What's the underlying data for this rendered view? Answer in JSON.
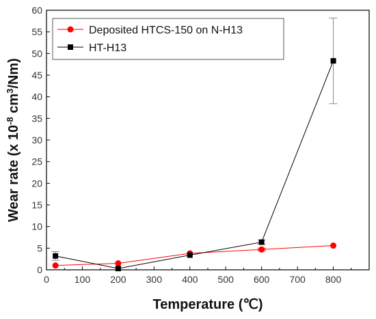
{
  "chart_data": {
    "type": "line",
    "title": "",
    "xlabel": "Temperature (℃)",
    "ylabel_parts": [
      "Wear rate (x 10",
      "-8",
      " cm",
      "3",
      "/Nm)"
    ],
    "xlim": [
      0,
      900
    ],
    "ylim": [
      0,
      60
    ],
    "xticks": [
      0,
      100,
      200,
      300,
      400,
      500,
      600,
      700,
      800
    ],
    "yticks": [
      0,
      5,
      10,
      15,
      20,
      25,
      30,
      35,
      40,
      45,
      50,
      55,
      60
    ],
    "grid": false,
    "legend_position": "top-left",
    "series": [
      {
        "name": "Deposited HTCS-150 on N-H13",
        "color": "#ff0000",
        "marker": "circle",
        "x": [
          25,
          200,
          400,
          600,
          800
        ],
        "y": [
          1.0,
          1.5,
          3.8,
          4.7,
          5.6
        ],
        "err": [
          0,
          0,
          0,
          0.3,
          0
        ]
      },
      {
        "name": "HT-H13",
        "color": "#000000",
        "marker": "square",
        "x": [
          25,
          200,
          400,
          600,
          800
        ],
        "y": [
          3.2,
          0.3,
          3.4,
          6.4,
          48.3
        ],
        "err": [
          1.0,
          0,
          0,
          0.5,
          9.9
        ]
      }
    ]
  }
}
